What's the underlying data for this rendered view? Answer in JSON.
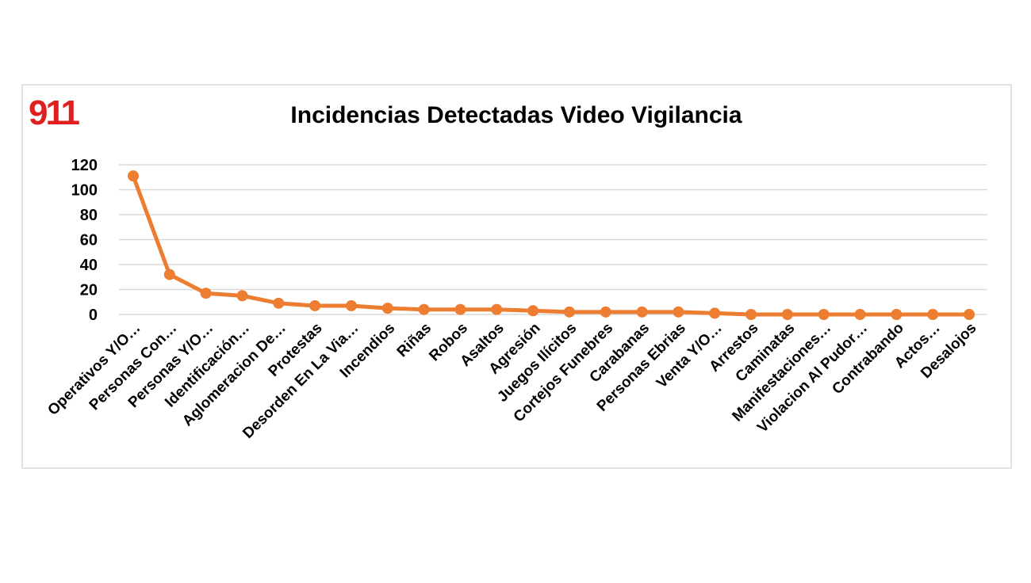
{
  "logo": "911",
  "chart_data": {
    "type": "line",
    "title": "Incidencias Detectadas Video Vigilancia",
    "categories": [
      "Operativos Y/O…",
      "Personas Con…",
      "Personas Y/O…",
      "Identificación…",
      "Aglomeracion De…",
      "Protestas",
      "Desorden En La Via…",
      "Incendios",
      "Riñas",
      "Robos",
      "Asaltos",
      "Agresión",
      "Juegos Ilícitos",
      "Cortejos Funebres",
      "Carabanas",
      "Personas Ebrias",
      "Venta Y/O…",
      "Arrestos",
      "Caminatas",
      "Manifestaciones…",
      "Violacion Al Pudor…",
      "Contrabando",
      "Actos…",
      "Desalojos"
    ],
    "values": [
      111,
      32,
      17,
      15,
      9,
      7,
      7,
      5,
      4,
      4,
      4,
      3,
      2,
      2,
      2,
      2,
      1,
      0,
      0,
      0,
      0,
      0,
      0,
      0
    ],
    "color": "#ed7d31",
    "ylim": [
      0,
      120
    ],
    "yticks": [
      0,
      20,
      40,
      60,
      80,
      100,
      120
    ],
    "grid": true
  }
}
